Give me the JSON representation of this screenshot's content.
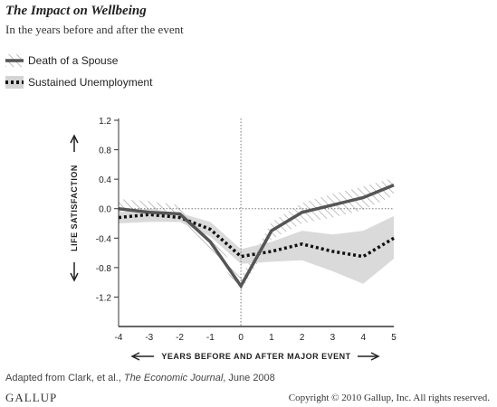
{
  "header": {
    "title": "The Impact on Wellbeing",
    "subtitle": "In the years before and after the event"
  },
  "footer": {
    "source_prefix": "Adapted from Clark, et al., ",
    "source_journal": "The Economic Journal",
    "source_suffix": ", June 2008",
    "brand": "GALLUP",
    "copyright": "Copyright © 2010 Gallup, Inc. All rights reserved."
  },
  "colors": {
    "spouse_line": "#555555",
    "unemployment_line": "#111111",
    "unemployment_band": "#d4d4d4",
    "spouse_hatch": "#aaaaaa",
    "axis": "#333333"
  },
  "chart_data": {
    "type": "line",
    "ylabel": "LIFE SATISFACTION",
    "xlabel": "YEARS BEFORE AND AFTER MAJOR EVENT",
    "xlim": [
      -4,
      5
    ],
    "ylim": [
      -1.6,
      1.2
    ],
    "x_ticks": [
      -4,
      -3,
      -2,
      -1,
      0,
      1,
      2,
      3,
      4,
      5
    ],
    "y_ticks": [
      1.2,
      0.8,
      0.4,
      0.0,
      -0.4,
      -0.8,
      -1.2
    ],
    "y_tick_labels": [
      "1.2",
      "0.8",
      "0.4",
      "0.0",
      "-0.4",
      "-0.8",
      "-1.2"
    ],
    "x": [
      -4,
      -3,
      -2,
      -1,
      0,
      1,
      2,
      3,
      4,
      5
    ],
    "series": [
      {
        "name": "Death of a Spouse",
        "style": "solid",
        "values": [
          0.0,
          -0.05,
          -0.07,
          -0.45,
          -1.05,
          -0.3,
          -0.05,
          0.05,
          0.15,
          0.32
        ],
        "lower": [
          -0.13,
          -0.15,
          -0.18,
          -0.55,
          -1.12,
          -0.42,
          -0.2,
          -0.12,
          -0.02,
          0.18
        ],
        "upper": [
          0.13,
          0.1,
          0.05,
          -0.33,
          -0.93,
          -0.18,
          0.08,
          0.2,
          0.3,
          0.42
        ]
      },
      {
        "name": "Sustained Unemployment",
        "style": "dotted",
        "values": [
          -0.12,
          -0.08,
          -0.12,
          -0.28,
          -0.65,
          -0.58,
          -0.48,
          -0.58,
          -0.65,
          -0.4
        ],
        "lower": [
          -0.2,
          -0.18,
          -0.18,
          -0.38,
          -0.75,
          -0.72,
          -0.7,
          -0.85,
          -1.02,
          -0.68
        ],
        "upper": [
          -0.05,
          0.0,
          -0.06,
          -0.18,
          -0.55,
          -0.45,
          -0.3,
          -0.35,
          -0.3,
          -0.1
        ]
      }
    ],
    "grid": false,
    "legend_position": "top-left"
  }
}
